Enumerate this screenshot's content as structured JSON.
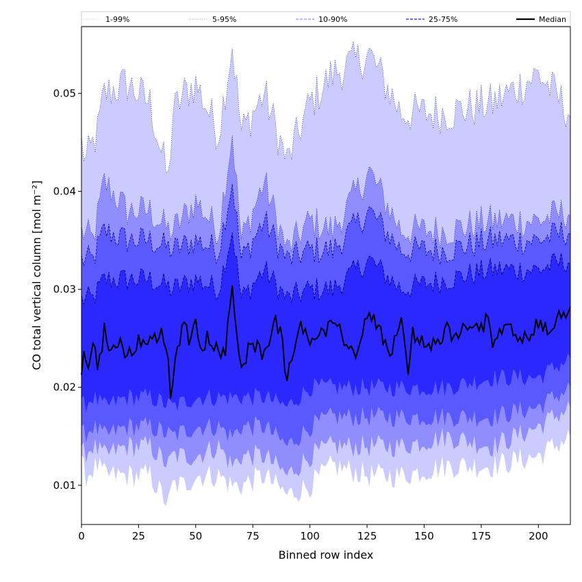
{
  "chart_data": {
    "type": "area",
    "xlabel": "Binned row index",
    "ylabel": "CO total vertical column [mol m⁻²]",
    "xlim": [
      0,
      214
    ],
    "ylim": [
      0.006,
      0.0568
    ],
    "x_ticks": [
      0,
      25,
      50,
      75,
      100,
      125,
      150,
      175,
      200
    ],
    "y_ticks": [
      0.01,
      0.02,
      0.03,
      0.04,
      0.05
    ],
    "grid": false,
    "legend_position": "top, spanning full width",
    "num_bins": 215,
    "colors": {
      "band_1_99": "#cccbff",
      "band_5_95": "#8f8dff",
      "band_10_90": "#5a58ff",
      "band_25_75": "#2b28ff",
      "median": "#000000",
      "edge_line": "#000080"
    },
    "series": [
      {
        "name": "1-99%",
        "style": "dotted",
        "anchors_x": [
          0,
          2,
          7,
          10,
          20,
          30,
          38,
          40,
          45,
          50,
          60,
          66,
          70,
          80,
          90,
          100,
          110,
          126,
          140,
          160,
          180,
          200,
          214
        ],
        "upper": [
          0.045,
          0.043,
          0.046,
          0.05,
          0.051,
          0.049,
          0.041,
          0.048,
          0.05,
          0.051,
          0.046,
          0.055,
          0.046,
          0.05,
          0.043,
          0.049,
          0.052,
          0.054,
          0.048,
          0.048,
          0.049,
          0.052,
          0.048
        ],
        "lower": [
          0.012,
          0.011,
          0.012,
          0.011,
          0.011,
          0.011,
          0.008,
          0.01,
          0.01,
          0.011,
          0.011,
          0.01,
          0.01,
          0.011,
          0.009,
          0.01,
          0.012,
          0.011,
          0.011,
          0.012,
          0.012,
          0.013,
          0.015
        ]
      },
      {
        "name": "5-95%",
        "style": "dotted",
        "anchors_x": [
          0,
          5,
          10,
          20,
          30,
          38,
          40,
          50,
          60,
          66,
          70,
          80,
          90,
          100,
          110,
          126,
          140,
          160,
          180,
          200,
          214
        ],
        "upper": [
          0.036,
          0.035,
          0.041,
          0.038,
          0.038,
          0.036,
          0.036,
          0.039,
          0.036,
          0.046,
          0.035,
          0.041,
          0.034,
          0.037,
          0.036,
          0.042,
          0.036,
          0.036,
          0.037,
          0.037,
          0.038
        ],
        "lower": [
          0.013,
          0.014,
          0.013,
          0.014,
          0.014,
          0.012,
          0.013,
          0.013,
          0.014,
          0.012,
          0.013,
          0.013,
          0.011,
          0.013,
          0.014,
          0.014,
          0.014,
          0.015,
          0.014,
          0.016,
          0.018
        ]
      },
      {
        "name": "10-90%",
        "style": "dashed",
        "anchors_x": [
          0,
          5,
          10,
          20,
          30,
          40,
          50,
          60,
          66,
          70,
          80,
          90,
          100,
          110,
          126,
          140,
          160,
          180,
          200,
          214
        ],
        "upper": [
          0.033,
          0.033,
          0.036,
          0.035,
          0.035,
          0.034,
          0.035,
          0.034,
          0.041,
          0.033,
          0.037,
          0.033,
          0.034,
          0.034,
          0.038,
          0.034,
          0.034,
          0.035,
          0.035,
          0.036
        ],
        "lower": [
          0.015,
          0.016,
          0.015,
          0.016,
          0.016,
          0.015,
          0.016,
          0.016,
          0.015,
          0.016,
          0.016,
          0.014,
          0.016,
          0.017,
          0.017,
          0.017,
          0.017,
          0.017,
          0.018,
          0.02
        ]
      },
      {
        "name": "25-75%",
        "style": "dashed",
        "anchors_x": [
          0,
          5,
          10,
          20,
          30,
          40,
          50,
          60,
          66,
          70,
          80,
          90,
          100,
          110,
          126,
          140,
          160,
          180,
          200,
          214
        ],
        "upper": [
          0.029,
          0.029,
          0.031,
          0.031,
          0.031,
          0.03,
          0.031,
          0.03,
          0.036,
          0.029,
          0.032,
          0.029,
          0.03,
          0.03,
          0.033,
          0.03,
          0.031,
          0.032,
          0.032,
          0.033
        ],
        "lower": [
          0.018,
          0.019,
          0.018,
          0.019,
          0.019,
          0.018,
          0.019,
          0.019,
          0.019,
          0.019,
          0.019,
          0.018,
          0.02,
          0.02,
          0.02,
          0.02,
          0.02,
          0.021,
          0.021,
          0.023
        ]
      },
      {
        "name": "Median",
        "style": "solid",
        "anchors_x": [
          0,
          1,
          3,
          5,
          7,
          9,
          10,
          12,
          15,
          20,
          25,
          30,
          35,
          38,
          39,
          42,
          45,
          48,
          50,
          52,
          55,
          60,
          63,
          66,
          68,
          70,
          75,
          80,
          85,
          88,
          90,
          95,
          100,
          105,
          110,
          115,
          120,
          125,
          130,
          135,
          140,
          143,
          145,
          150,
          155,
          160,
          165,
          170,
          175,
          178,
          180,
          185,
          190,
          195,
          200,
          205,
          210,
          214
        ],
        "values": [
          0.021,
          0.023,
          0.022,
          0.0245,
          0.0225,
          0.0245,
          0.0265,
          0.023,
          0.0245,
          0.0235,
          0.0245,
          0.0245,
          0.0255,
          0.023,
          0.019,
          0.0245,
          0.0265,
          0.0245,
          0.0275,
          0.0235,
          0.025,
          0.024,
          0.0235,
          0.031,
          0.025,
          0.0225,
          0.0245,
          0.0235,
          0.027,
          0.0245,
          0.0205,
          0.0265,
          0.0245,
          0.0255,
          0.0265,
          0.025,
          0.023,
          0.0275,
          0.026,
          0.023,
          0.027,
          0.0215,
          0.0255,
          0.0245,
          0.024,
          0.026,
          0.025,
          0.0265,
          0.026,
          0.0275,
          0.024,
          0.026,
          0.0255,
          0.025,
          0.0265,
          0.0255,
          0.0275,
          0.028
        ]
      }
    ]
  }
}
